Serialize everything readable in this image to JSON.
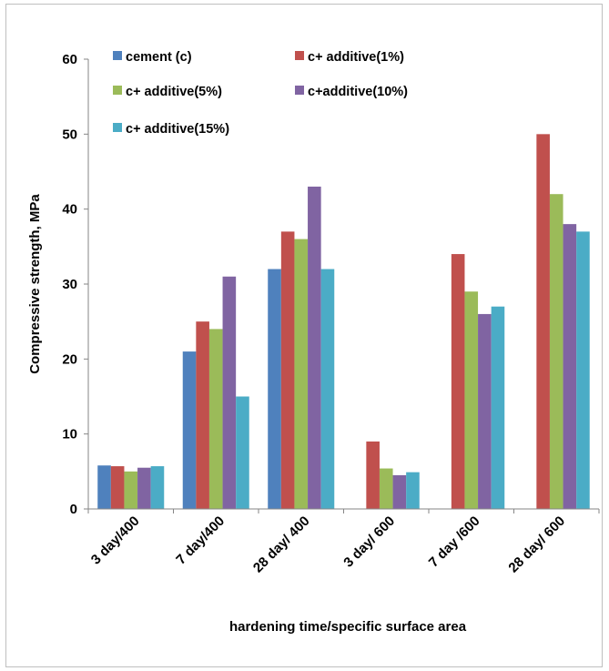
{
  "chart_data": {
    "type": "bar",
    "categories": [
      "3 day/400",
      "7 day/400",
      "28 day/ 400",
      "3 day/ 600",
      "7 day /600",
      "28 day/ 600"
    ],
    "series": [
      {
        "name": "cement (c)",
        "color": "#4f81bd",
        "values": [
          5.8,
          21,
          32,
          null,
          null,
          null
        ]
      },
      {
        "name": "c+ additive(1%)",
        "color": "#c0504d",
        "values": [
          5.7,
          25,
          37,
          9,
          34,
          50
        ]
      },
      {
        "name": "c+ additive(5%)",
        "color": "#9bbb59",
        "values": [
          5.0,
          24,
          36,
          5.4,
          29,
          42
        ]
      },
      {
        "name": "c+additive(10%)",
        "color": "#8064a2",
        "values": [
          5.5,
          31,
          43,
          4.5,
          26,
          38
        ]
      },
      {
        "name": "c+ additive(15%)",
        "color": "#4bacc6",
        "values": [
          5.7,
          15,
          32,
          4.9,
          27,
          37
        ]
      }
    ],
    "xlabel": "hardening time/specific surface area",
    "ylabel": "Compressive strength, MPa",
    "ylim": [
      0,
      60
    ],
    "yticks": [
      0,
      10,
      20,
      30,
      40,
      50,
      60
    ],
    "grid": false,
    "legend_position": "top-left-inside"
  }
}
